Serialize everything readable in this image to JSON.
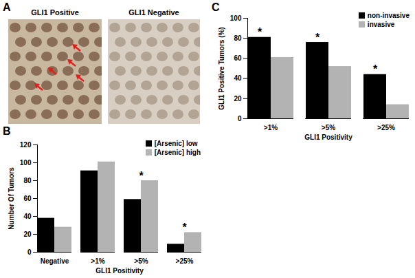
{
  "image_panel": {
    "panel": "A",
    "images": [
      "GLI1 Positive",
      "GLI1 Negative"
    ]
  },
  "chart_data": [
    {
      "panel": "B",
      "type": "bar",
      "xlabel": "GLI1 Positivity",
      "ylabel": "Number Of Tumors",
      "categories": [
        "Negative",
        ">1%",
        ">5%",
        ">25%"
      ],
      "series": [
        {
          "name": "[Arsenic] low",
          "color": "#000000",
          "values": [
            38,
            91,
            59,
            9
          ]
        },
        {
          "name": "[Arsenic] high",
          "color": "#b3b3b3",
          "values": [
            28,
            101,
            80,
            22
          ]
        }
      ],
      "ylim": [
        0,
        120
      ],
      "yticks": [
        0,
        20,
        40,
        60,
        80,
        100,
        120
      ],
      "legend": "top-right",
      "annotations": [
        {
          "text": "*",
          "category": ">5%"
        },
        {
          "text": "*",
          "category": ">25%"
        }
      ]
    },
    {
      "panel": "C",
      "type": "bar",
      "xlabel": "GLI1 Positivity",
      "ylabel": "GLI1 Positive Tumors (%)",
      "categories": [
        ">1%",
        ">5%",
        ">25%"
      ],
      "series": [
        {
          "name": "non-invasive",
          "color": "#000000",
          "values": [
            81,
            76,
            44
          ]
        },
        {
          "name": "invasive",
          "color": "#b3b3b3",
          "values": [
            61,
            52,
            14
          ]
        }
      ],
      "ylim": [
        0,
        100
      ],
      "yticks": [
        0,
        20,
        40,
        60,
        80,
        100
      ],
      "legend": "top-right",
      "annotations": [
        {
          "text": "*",
          "category": ">1%",
          "series": "non-invasive"
        },
        {
          "text": "*",
          "category": ">5%",
          "series": "non-invasive"
        },
        {
          "text": "*",
          "category": ">25%",
          "series": "non-invasive"
        }
      ]
    }
  ]
}
